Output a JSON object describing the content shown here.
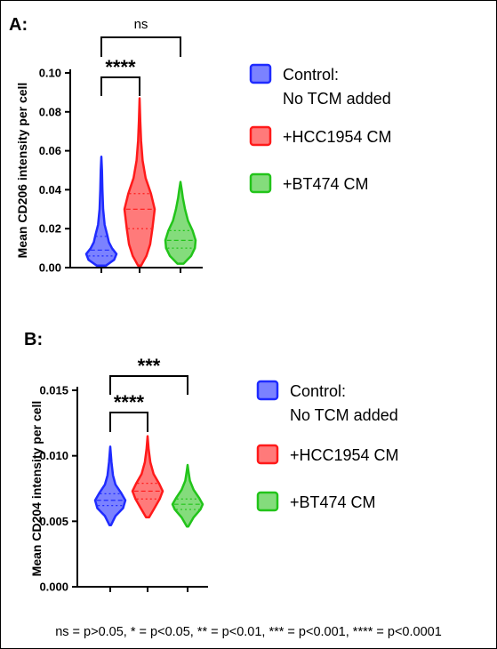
{
  "footnote": "ns = p>0.05, * = p<0.05, ** = p<0.01, *** = p<0.001, **** = p<0.0001",
  "chart_data": [
    {
      "type": "violin",
      "panel_label": "A:",
      "ylabel": "Mean CD206 intensity per cell",
      "ylim": [
        0,
        0.1
      ],
      "yticks": [
        "0.00",
        "0.02",
        "0.04",
        "0.06",
        "0.08",
        "0.10"
      ],
      "ytick_values": [
        0,
        0.02,
        0.04,
        0.06,
        0.08,
        0.1
      ],
      "legend_position": "right",
      "series": [
        {
          "name": "Control:\nNo TCM added",
          "legend_lines": [
            "Control:",
            "No TCM added"
          ],
          "color": "#1f2bff",
          "fill": "#7b82ff",
          "min": 0.001,
          "max": 0.057,
          "q1": 0.006,
          "median": 0.009,
          "q3": 0.016,
          "density": [
            [
              0.001,
              0.3
            ],
            [
              0.004,
              0.85
            ],
            [
              0.007,
              1.0
            ],
            [
              0.01,
              0.7
            ],
            [
              0.013,
              0.5
            ],
            [
              0.017,
              0.38
            ],
            [
              0.022,
              0.22
            ],
            [
              0.03,
              0.12
            ],
            [
              0.04,
              0.07
            ],
            [
              0.05,
              0.04
            ],
            [
              0.057,
              0.0
            ]
          ]
        },
        {
          "name": "+HCC1954 CM",
          "legend_lines": [
            "+HCC1954 CM"
          ],
          "color": "#ff1a1a",
          "fill": "#ff7a7a",
          "min": 0.001,
          "max": 0.087,
          "q1": 0.02,
          "median": 0.03,
          "q3": 0.038,
          "density": [
            [
              0.001,
              0.1
            ],
            [
              0.006,
              0.45
            ],
            [
              0.012,
              0.7
            ],
            [
              0.02,
              0.85
            ],
            [
              0.03,
              1.0
            ],
            [
              0.038,
              0.75
            ],
            [
              0.046,
              0.4
            ],
            [
              0.055,
              0.2
            ],
            [
              0.065,
              0.1
            ],
            [
              0.075,
              0.05
            ],
            [
              0.087,
              0.0
            ]
          ]
        },
        {
          "name": "+BT474 CM",
          "legend_lines": [
            "+BT474 CM"
          ],
          "color": "#22c41a",
          "fill": "#84dc7c",
          "min": 0.002,
          "max": 0.044,
          "q1": 0.01,
          "median": 0.014,
          "q3": 0.019,
          "density": [
            [
              0.002,
              0.2
            ],
            [
              0.006,
              0.7
            ],
            [
              0.01,
              0.95
            ],
            [
              0.014,
              1.0
            ],
            [
              0.019,
              0.8
            ],
            [
              0.024,
              0.5
            ],
            [
              0.03,
              0.3
            ],
            [
              0.036,
              0.15
            ],
            [
              0.04,
              0.08
            ],
            [
              0.044,
              0.0
            ]
          ]
        }
      ],
      "comparisons": [
        {
          "from": 0,
          "to": 1,
          "label": "****"
        },
        {
          "from": 0,
          "to": 2,
          "label": "ns"
        }
      ]
    },
    {
      "type": "violin",
      "panel_label": "B:",
      "ylabel": "Mean CD204 intensity per cell",
      "ylim": [
        0,
        0.015
      ],
      "yticks": [
        "0.000",
        "0.005",
        "0.010",
        "0.015"
      ],
      "ytick_values": [
        0,
        0.005,
        0.01,
        0.015
      ],
      "legend_position": "right",
      "series": [
        {
          "name": "Control:\nNo TCM added",
          "legend_lines": [
            "Control:",
            "No TCM added"
          ],
          "color": "#1f2bff",
          "fill": "#7b82ff",
          "min": 0.0047,
          "max": 0.0107,
          "q1": 0.0062,
          "median": 0.0066,
          "q3": 0.0071,
          "density": [
            [
              0.0047,
              0.05
            ],
            [
              0.0054,
              0.35
            ],
            [
              0.006,
              0.85
            ],
            [
              0.0066,
              1.0
            ],
            [
              0.0072,
              0.7
            ],
            [
              0.0078,
              0.35
            ],
            [
              0.0085,
              0.18
            ],
            [
              0.0095,
              0.08
            ],
            [
              0.0107,
              0.0
            ]
          ]
        },
        {
          "name": "+HCC1954 CM",
          "legend_lines": [
            "+HCC1954 CM"
          ],
          "color": "#ff1a1a",
          "fill": "#ff7a7a",
          "min": 0.0053,
          "max": 0.0115,
          "q1": 0.0067,
          "median": 0.0073,
          "q3": 0.0079,
          "density": [
            [
              0.0053,
              0.1
            ],
            [
              0.006,
              0.45
            ],
            [
              0.0067,
              0.8
            ],
            [
              0.0073,
              1.0
            ],
            [
              0.0079,
              0.75
            ],
            [
              0.0086,
              0.4
            ],
            [
              0.0095,
              0.18
            ],
            [
              0.0105,
              0.07
            ],
            [
              0.0115,
              0.0
            ]
          ]
        },
        {
          "name": "+BT474 CM",
          "legend_lines": [
            "+BT474 CM"
          ],
          "color": "#22c41a",
          "fill": "#84dc7c",
          "min": 0.0046,
          "max": 0.0093,
          "q1": 0.0059,
          "median": 0.0063,
          "q3": 0.0067,
          "density": [
            [
              0.0046,
              0.05
            ],
            [
              0.0053,
              0.4
            ],
            [
              0.0059,
              0.85
            ],
            [
              0.0063,
              1.0
            ],
            [
              0.0068,
              0.75
            ],
            [
              0.0074,
              0.4
            ],
            [
              0.0081,
              0.15
            ],
            [
              0.0088,
              0.06
            ],
            [
              0.0093,
              0.0
            ]
          ]
        }
      ],
      "comparisons": [
        {
          "from": 0,
          "to": 1,
          "label": "****"
        },
        {
          "from": 0,
          "to": 2,
          "label": "***"
        }
      ]
    }
  ]
}
